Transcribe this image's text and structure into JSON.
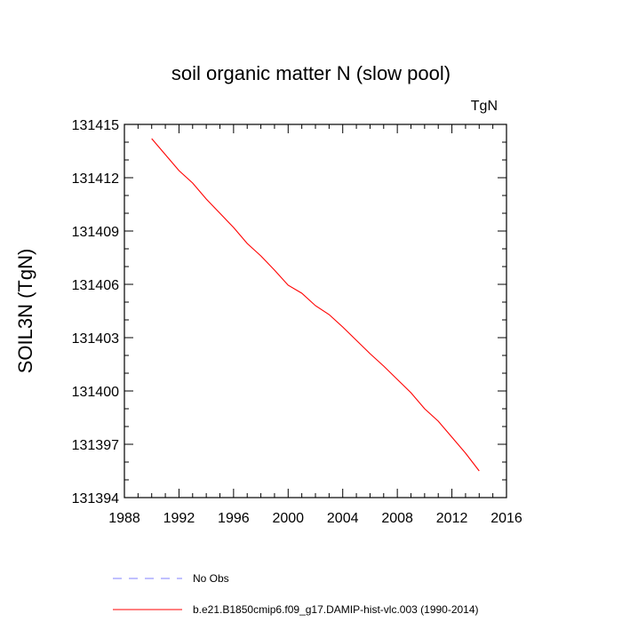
{
  "chart_data": {
    "type": "line",
    "title": "soil organic matter N (slow pool)",
    "units": "TgN",
    "xlabel": "",
    "ylabel": "SOIL3N  (TgN)",
    "xlim": [
      1988,
      2016
    ],
    "ylim": [
      131394,
      131415
    ],
    "xticks": [
      1988,
      1992,
      1996,
      2000,
      2004,
      2008,
      2012,
      2016
    ],
    "yticks": [
      131394,
      131397,
      131400,
      131403,
      131406,
      131409,
      131412,
      131415
    ],
    "x_minor_step": 1,
    "y_minor_step": 1,
    "series": [
      {
        "name": "b.e21.B1850cmip6.f09_g17.DAMIP-hist-vlc.003 (1990-2014)",
        "color": "#ff0000",
        "dash": "solid",
        "x": [
          1990,
          1991,
          1992,
          1993,
          1994,
          1995,
          1996,
          1997,
          1998,
          1999,
          2000,
          2001,
          2002,
          2003,
          2004,
          2005,
          2006,
          2007,
          2008,
          2009,
          2010,
          2011,
          2012,
          2013,
          2014
        ],
        "values": [
          131414.2,
          131413.3,
          131412.4,
          131411.7,
          131410.8,
          131410.0,
          131409.2,
          131408.3,
          131407.6,
          131406.8,
          131405.95,
          131405.5,
          131404.8,
          131404.3,
          131403.6,
          131402.85,
          131402.1,
          131401.4,
          131400.65,
          131399.9,
          131399.0,
          131398.3,
          131397.4,
          131396.5,
          131395.5
        ]
      }
    ],
    "legend": [
      {
        "label": "No Obs",
        "color": "#8080ff",
        "dash": "dashed"
      },
      {
        "label": "b.e21.B1850cmip6.f09_g17.DAMIP-hist-vlc.003 (1990-2014)",
        "color": "#ff0000",
        "dash": "solid"
      }
    ]
  }
}
